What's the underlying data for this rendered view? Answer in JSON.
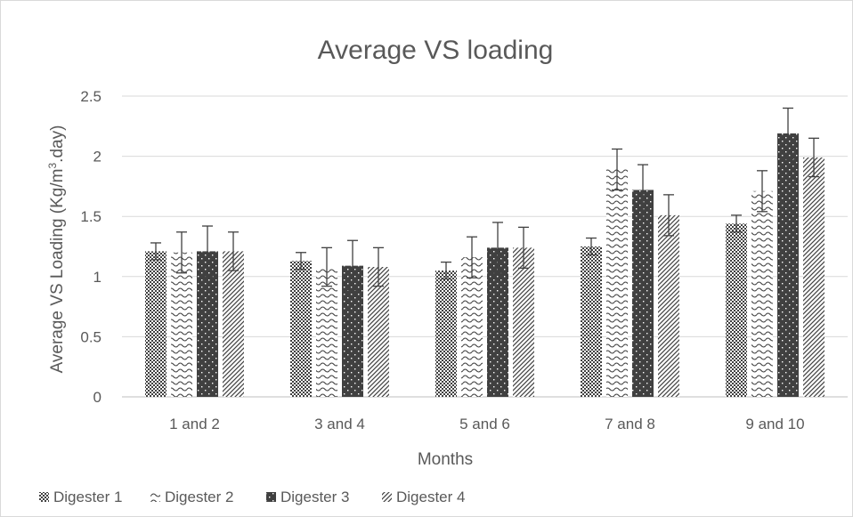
{
  "chart_data": {
    "type": "bar",
    "title": "Average VS loading",
    "xlabel": "Months",
    "ylabel_main": "Average VS Loading (Kg/m",
    "ylabel_sup": "3",
    "ylabel_end": ".day)",
    "ylim": [
      0,
      2.5
    ],
    "yticks": [
      0,
      0.5,
      1,
      1.5,
      2,
      2.5
    ],
    "ytick_labels": [
      "0",
      "0.5",
      "1",
      "1.5",
      "2",
      "2.5"
    ],
    "grid": true,
    "legend_position": "bottom-left",
    "categories": [
      "1 and 2",
      "3 and 4",
      "5 and 6",
      "7 and 8",
      "9 and 10"
    ],
    "series": [
      {
        "name": "Digester 1",
        "pattern": "crosshatch",
        "values": [
          1.21,
          1.13,
          1.05,
          1.25,
          1.44
        ],
        "errors": [
          0.07,
          0.07,
          0.07,
          0.07,
          0.07
        ]
      },
      {
        "name": "Digester 2",
        "pattern": "wave",
        "values": [
          1.2,
          1.08,
          1.16,
          1.89,
          1.71
        ],
        "errors": [
          0.17,
          0.16,
          0.17,
          0.17,
          0.17
        ]
      },
      {
        "name": "Digester 3",
        "pattern": "dots",
        "values": [
          1.21,
          1.09,
          1.24,
          1.72,
          2.19
        ],
        "errors": [
          0.21,
          0.21,
          0.21,
          0.21,
          0.21
        ]
      },
      {
        "name": "Digester 4",
        "pattern": "diagonal",
        "values": [
          1.21,
          1.08,
          1.24,
          1.51,
          1.99
        ],
        "errors": [
          0.16,
          0.16,
          0.17,
          0.17,
          0.16
        ]
      }
    ],
    "colors": {
      "dark": "#404040",
      "grid": "#d9d9d9",
      "text": "#595959"
    }
  }
}
